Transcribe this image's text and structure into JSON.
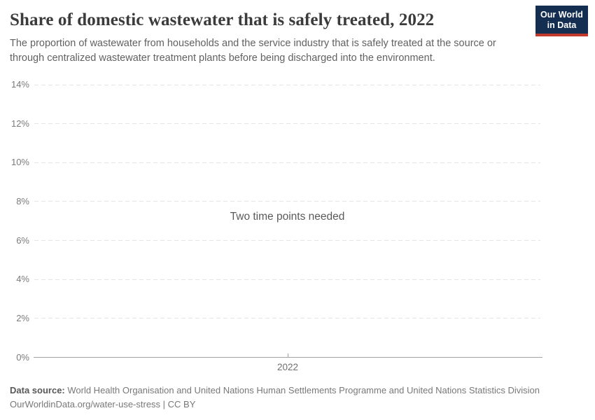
{
  "header": {
    "title": "Share of domestic wastewater that is safely treated, 2022",
    "subtitle": "The proportion of wastewater from households and the service industry that is safely treated at the source or through centralized wastewater treatment plants before being discharged into the environment.",
    "logo": {
      "line1": "Our World",
      "line2": "in Data",
      "bg_color": "#132E51",
      "accent_color": "#C0392B"
    }
  },
  "chart_data": {
    "type": "line",
    "title": "Share of domestic wastewater that is safely treated, 2022",
    "note": "Two time points needed",
    "series": [],
    "x": [],
    "x_axis": {
      "ticks": [
        "2022"
      ]
    },
    "y_axis": {
      "unit": "%",
      "min": 0,
      "max": 14,
      "ticks": [
        {
          "label": "14%",
          "value": 14
        },
        {
          "label": "12%",
          "value": 12
        },
        {
          "label": "10%",
          "value": 10
        },
        {
          "label": "8%",
          "value": 8
        },
        {
          "label": "6%",
          "value": 6
        },
        {
          "label": "4%",
          "value": 4
        },
        {
          "label": "2%",
          "value": 2
        },
        {
          "label": "0%",
          "value": 0
        }
      ]
    },
    "grid": "horizontal-dashed",
    "legend": "none",
    "empty_reason": "Two time points needed"
  },
  "footer": {
    "source_label": "Data source:",
    "source_text": " World Health Organisation and United Nations Human Settlements Programme and United Nations Statistics Division",
    "citation": "OurWorldinData.org/water-use-stress | CC BY"
  },
  "colors": {
    "gridline": "#e4e4e4",
    "axis": "#a3a3a3",
    "tick_label": "#7b7b7b",
    "title_text": "#3b3b3b",
    "subtitle_text": "#616161",
    "note_text": "#5a5a5a",
    "footer_text": "#787878"
  }
}
